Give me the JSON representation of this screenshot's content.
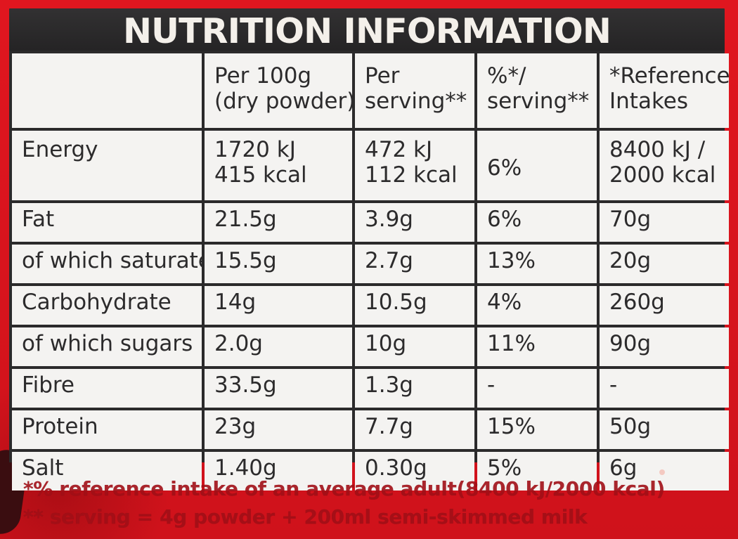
{
  "title": "NUTRITION INFORMATION",
  "table": {
    "columns": [
      {
        "line1": "",
        "line2": ""
      },
      {
        "line1": "Per 100g",
        "line2": "(dry powder)"
      },
      {
        "line1": "Per",
        "line2": "serving**"
      },
      {
        "line1": "%*/",
        "line2": "serving**"
      },
      {
        "line1": "*Reference",
        "line2": "Intakes"
      }
    ],
    "energy": {
      "label": "Energy",
      "per100g_kj": "1720 kJ",
      "per100g_kcal": "415 kcal",
      "perServing_kj": "472 kJ",
      "perServing_kcal": "112 kcal",
      "percent": "6%",
      "ref_kj": "8400 kJ /",
      "ref_kcal": "2000 kcal"
    },
    "rows": [
      {
        "label": "Fat",
        "per100g": "21.5g",
        "perServing": "3.9g",
        "percent": "6%",
        "reference": "70g"
      },
      {
        "label": "of which saturates",
        "per100g": "15.5g",
        "perServing": "2.7g",
        "percent": "13%",
        "reference": "20g"
      },
      {
        "label": "Carbohydrate",
        "per100g": "14g",
        "perServing": "10.5g",
        "percent": "4%",
        "reference": "260g"
      },
      {
        "label": "of which sugars",
        "per100g": "2.0g",
        "perServing": "10g",
        "percent": "11%",
        "reference": "90g"
      },
      {
        "label": "Fibre",
        "per100g": "33.5g",
        "perServing": "1.3g",
        "percent": "-",
        "reference": "-"
      },
      {
        "label": "Protein",
        "per100g": "23g",
        "perServing": "7.7g",
        "percent": "15%",
        "reference": "50g"
      },
      {
        "label": "Salt",
        "per100g": "1.40g",
        "perServing": "0.30g",
        "percent": "5%",
        "reference": "6g"
      }
    ]
  },
  "footer": {
    "line1": "*% reference intake of an average adult(8400 kJ/2000 kcal)",
    "line2": "** serving = 4g powder + 200ml semi-skimmed milk"
  },
  "colors": {
    "package_red": "#d4141c",
    "title_bar": "#2b2a2b",
    "table_background": "#f4f3f1",
    "text_dark": "#2c2b2c",
    "footer_text": "#a10f17"
  }
}
